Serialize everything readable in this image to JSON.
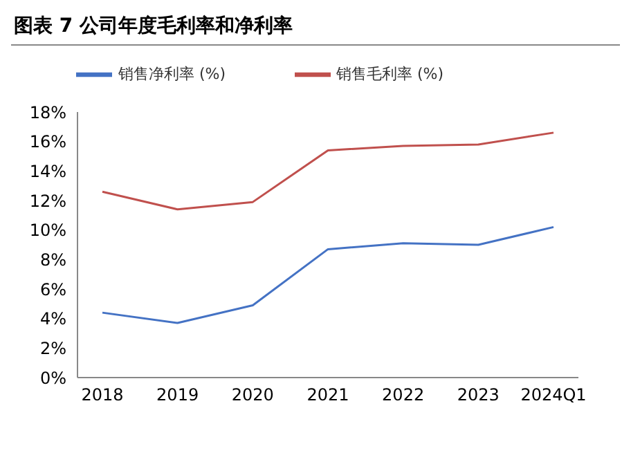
{
  "chart_data": {
    "type": "line",
    "title": "图表 7 公司年度毛利率和净利率",
    "categories": [
      "2018",
      "2019",
      "2020",
      "2021",
      "2022",
      "2023",
      "2024Q1"
    ],
    "series": [
      {
        "name": "销售净利率 (%)",
        "color": "#4472c4",
        "values": [
          4.4,
          3.7,
          4.9,
          8.7,
          9.1,
          9.0,
          10.2
        ]
      },
      {
        "name": "销售毛利率 (%)",
        "color": "#c0504d",
        "values": [
          12.6,
          11.4,
          11.9,
          15.4,
          15.7,
          15.8,
          16.6
        ]
      }
    ],
    "ylim": [
      0,
      18
    ],
    "yticks": [
      {
        "value": 0,
        "label": "0%"
      },
      {
        "value": 2,
        "label": "2%"
      },
      {
        "value": 4,
        "label": "4%"
      },
      {
        "value": 6,
        "label": "6%"
      },
      {
        "value": 8,
        "label": "8%"
      },
      {
        "value": 10,
        "label": "10%"
      },
      {
        "value": 12,
        "label": "12%"
      },
      {
        "value": 14,
        "label": "14%"
      },
      {
        "value": 16,
        "label": "16%"
      },
      {
        "value": 18,
        "label": "18%"
      }
    ],
    "grid": false,
    "legend": "top",
    "marker": "none",
    "line_style": "solid"
  }
}
